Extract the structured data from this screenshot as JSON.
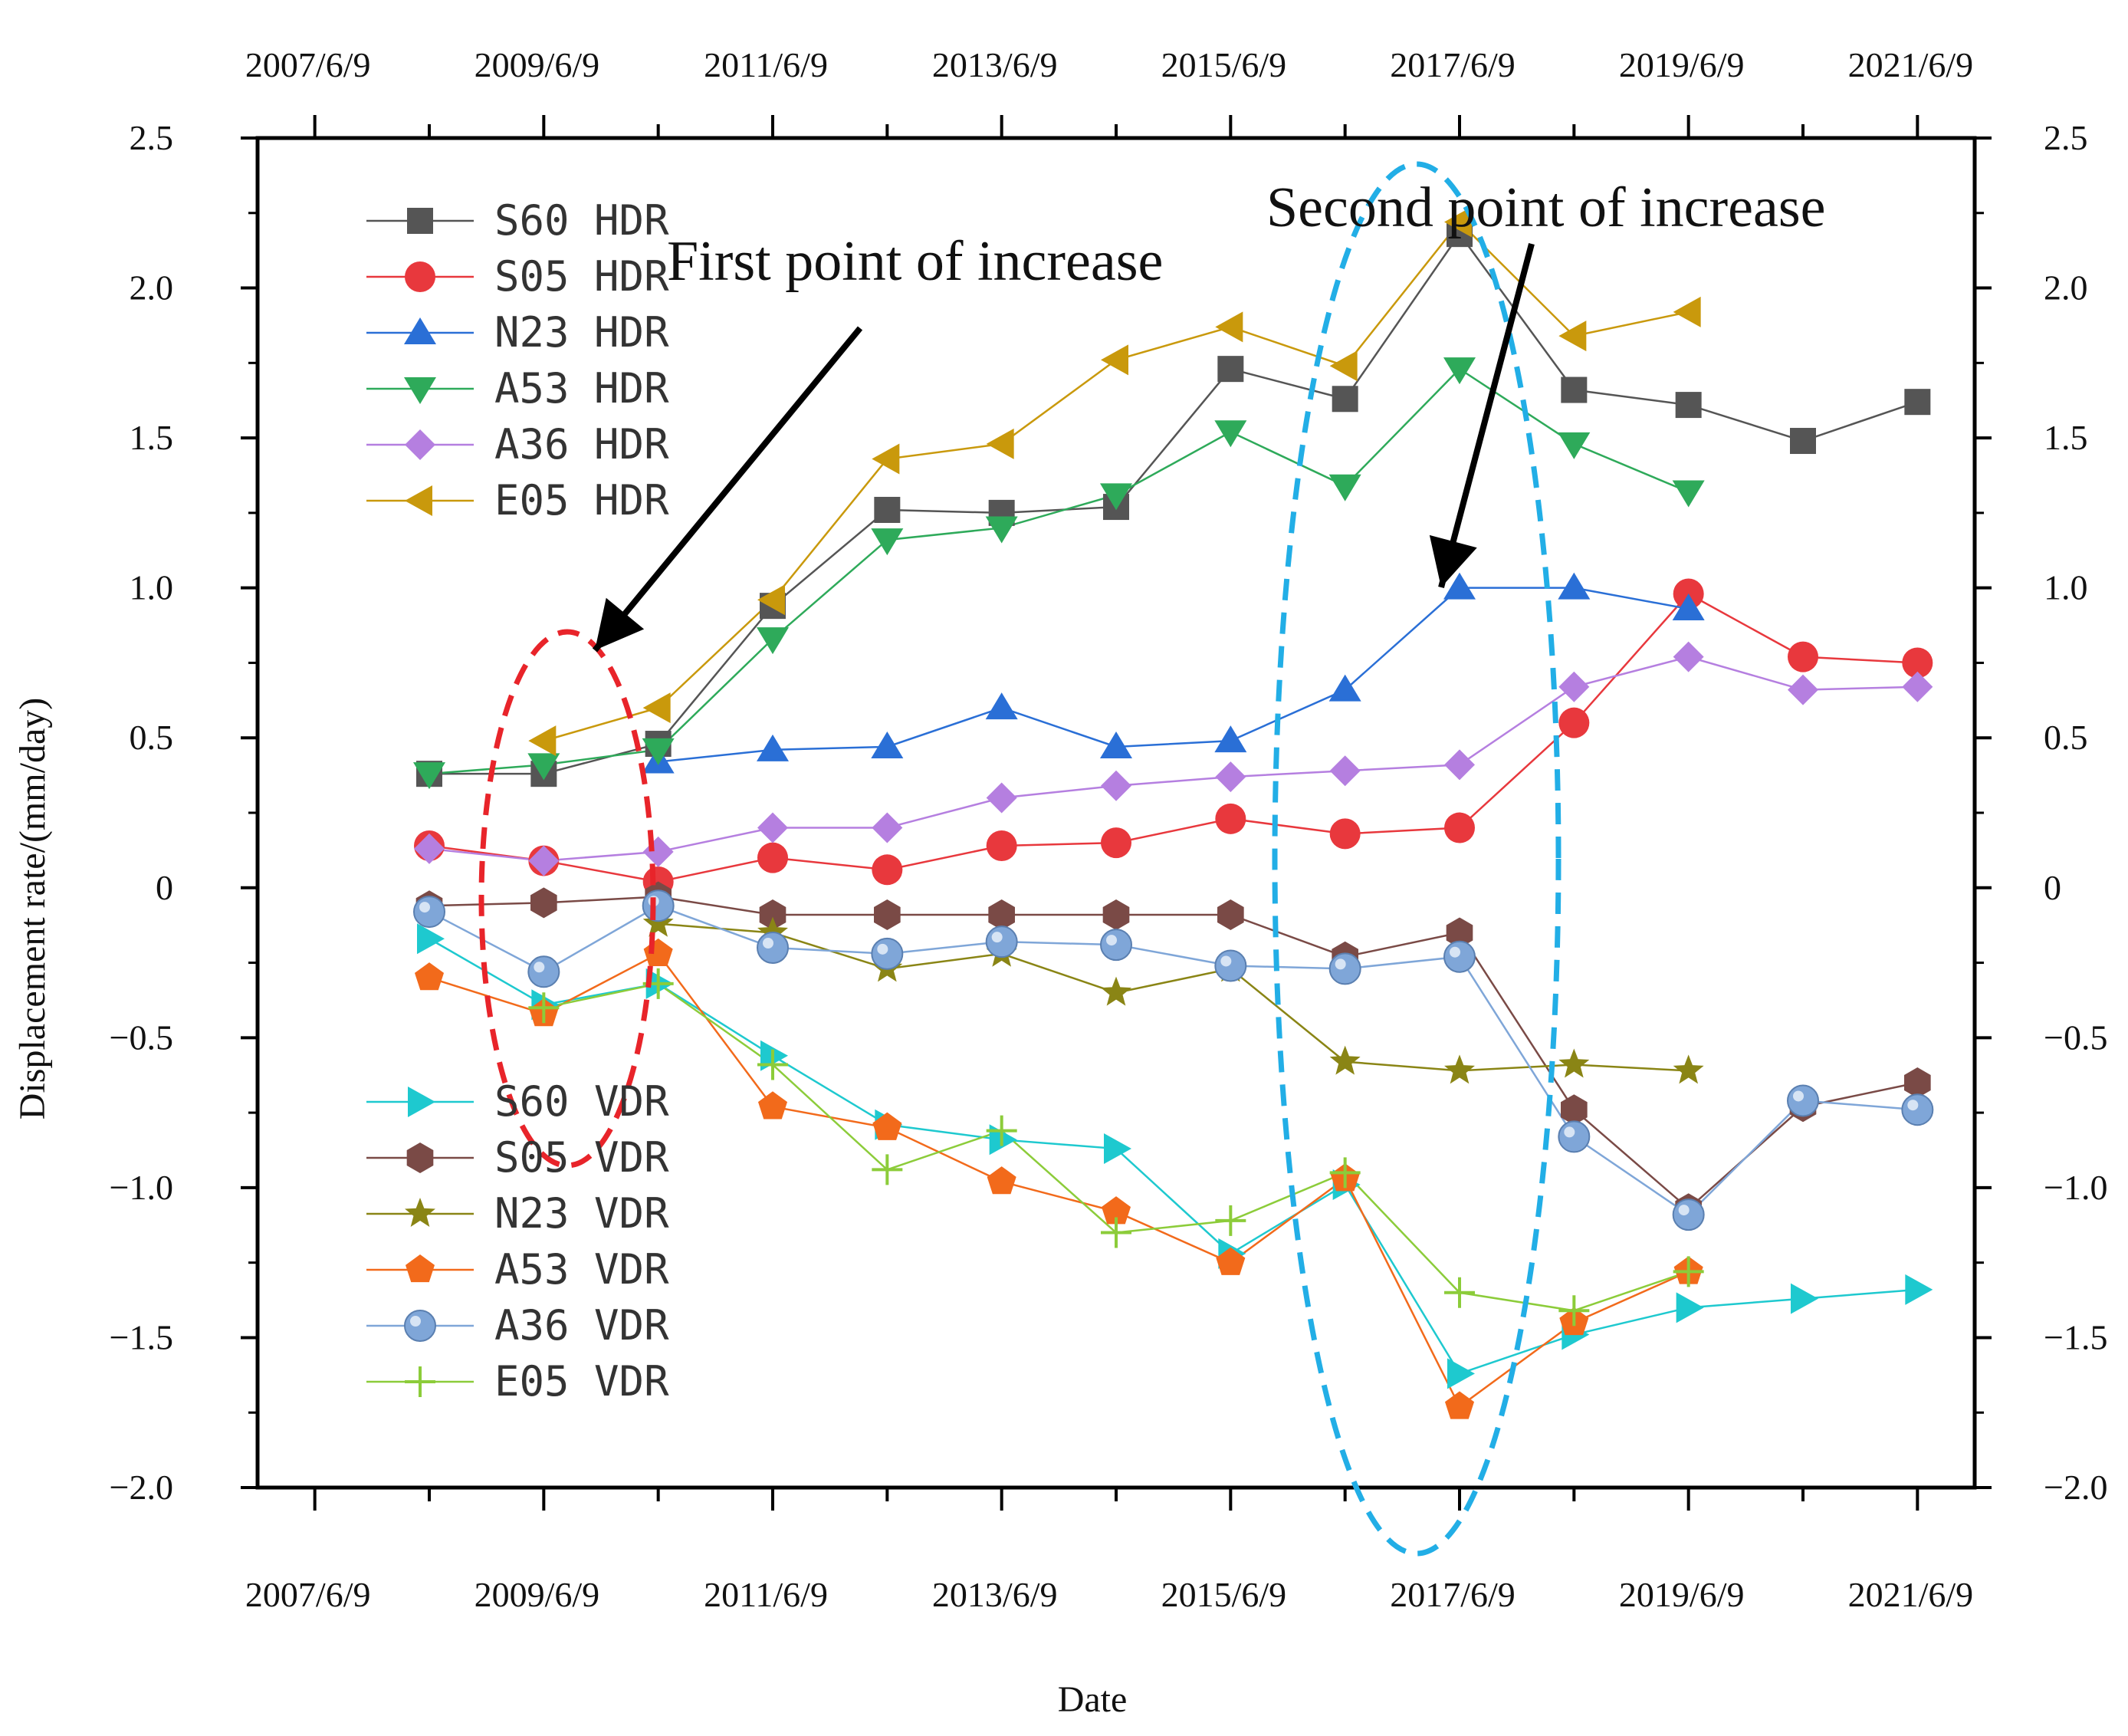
{
  "chart_data": {
    "type": "line",
    "title": "",
    "xlabel": "Date",
    "ylabel": "Displacement rate/(mm/day)",
    "ylim": [
      -2.0,
      2.5
    ],
    "xlim": [
      2007.0,
      2022.0
    ],
    "x_tick_labels": [
      "2007/6/9",
      "2009/6/9",
      "2011/6/9",
      "2013/6/9",
      "2015/6/9",
      "2017/6/9",
      "2019/6/9",
      "2021/6/9"
    ],
    "x_tick_values": [
      2007.44,
      2009.44,
      2011.44,
      2013.44,
      2015.44,
      2017.44,
      2019.44,
      2021.44
    ],
    "y_ticks": [
      {
        "value": 2.5,
        "label": "2.5"
      },
      {
        "value": 2.0,
        "label": "2.0"
      },
      {
        "value": 1.5,
        "label": "1.5"
      },
      {
        "value": 1.0,
        "label": "1.0"
      },
      {
        "value": 0.5,
        "label": "0.5"
      },
      {
        "value": 0,
        "label": "0"
      },
      {
        "value": -0.5,
        "label": "−0.5"
      },
      {
        "value": -1.0,
        "label": "−1.0"
      },
      {
        "value": -1.5,
        "label": "−1.5"
      },
      {
        "value": -2.0,
        "label": "−2.0"
      }
    ],
    "grid": false,
    "legend_placement": "upper-left (HDR) and lower-left (VDR)",
    "series": [
      {
        "name": "S60  HDR",
        "group": "HDR",
        "color": "#555555",
        "marker": "square",
        "x": [
          2008.5,
          2009.5,
          2010.5,
          2011.5,
          2012.5,
          2013.5,
          2014.5,
          2015.5,
          2016.5,
          2017.5,
          2018.5,
          2019.5,
          2020.5,
          2021.5
        ],
        "values": [
          0.38,
          0.38,
          0.48,
          0.94,
          1.26,
          1.25,
          1.27,
          1.73,
          1.63,
          2.18,
          1.66,
          1.61,
          1.49,
          1.62
        ]
      },
      {
        "name": "S05  HDR",
        "group": "HDR",
        "color": "#e8383d",
        "marker": "circle",
        "x": [
          2008.5,
          2009.5,
          2010.5,
          2011.5,
          2012.5,
          2013.5,
          2014.5,
          2015.5,
          2016.5,
          2017.5,
          2018.5,
          2019.5,
          2020.5,
          2021.5
        ],
        "values": [
          0.14,
          0.09,
          0.02,
          0.1,
          0.06,
          0.14,
          0.15,
          0.23,
          0.18,
          0.2,
          0.55,
          0.98,
          0.77,
          0.75
        ]
      },
      {
        "name": "N23  HDR",
        "group": "HDR",
        "color": "#2a6fd6",
        "marker": "triangle-up",
        "x": [
          2010.5,
          2011.5,
          2012.5,
          2013.5,
          2014.5,
          2015.5,
          2016.5,
          2017.5,
          2018.5,
          2019.5
        ],
        "values": [
          0.42,
          0.46,
          0.47,
          0.6,
          0.47,
          0.49,
          0.66,
          1.0,
          1.0,
          0.93
        ]
      },
      {
        "name": "A53  HDR",
        "group": "HDR",
        "color": "#2eaa5a",
        "marker": "triangle-down",
        "x": [
          2008.5,
          2009.5,
          2010.5,
          2011.5,
          2012.5,
          2013.5,
          2014.5,
          2015.5,
          2016.5,
          2017.5,
          2018.5,
          2019.5
        ],
        "values": [
          0.38,
          0.41,
          0.46,
          0.83,
          1.16,
          1.2,
          1.31,
          1.52,
          1.34,
          1.73,
          1.48,
          1.32
        ]
      },
      {
        "name": "A36  HDR",
        "group": "HDR",
        "color": "#b57fe0",
        "marker": "diamond",
        "x": [
          2008.5,
          2009.5,
          2010.5,
          2011.5,
          2012.5,
          2013.5,
          2014.5,
          2015.5,
          2016.5,
          2017.5,
          2018.5,
          2019.5,
          2020.5,
          2021.5
        ],
        "values": [
          0.13,
          0.09,
          0.12,
          0.2,
          0.2,
          0.3,
          0.34,
          0.37,
          0.39,
          0.41,
          0.67,
          0.77,
          0.66,
          0.67
        ]
      },
      {
        "name": "E05  HDR",
        "group": "HDR",
        "color": "#c9990c",
        "marker": "triangle-left",
        "x": [
          2009.5,
          2010.5,
          2011.5,
          2012.5,
          2013.5,
          2014.5,
          2015.5,
          2016.5,
          2017.5,
          2018.5,
          2019.5
        ],
        "values": [
          0.49,
          0.6,
          0.96,
          1.43,
          1.48,
          1.76,
          1.87,
          1.74,
          2.22,
          1.84,
          1.92
        ]
      },
      {
        "name": "S60  VDR",
        "group": "VDR",
        "color": "#1ec9cf",
        "marker": "triangle-right",
        "x": [
          2008.5,
          2009.5,
          2010.5,
          2011.5,
          2012.5,
          2013.5,
          2014.5,
          2015.5,
          2016.5,
          2017.5,
          2018.5,
          2019.5,
          2020.5,
          2021.5
        ],
        "values": [
          -0.17,
          -0.39,
          -0.32,
          -0.56,
          -0.79,
          -0.84,
          -0.87,
          -1.22,
          -0.99,
          -1.62,
          -1.49,
          -1.4,
          -1.37,
          -1.34
        ]
      },
      {
        "name": "S05  VDR",
        "group": "VDR",
        "color": "#7a4a46",
        "marker": "hexagon",
        "x": [
          2008.5,
          2009.5,
          2010.5,
          2011.5,
          2012.5,
          2013.5,
          2014.5,
          2015.5,
          2016.5,
          2017.5,
          2018.5,
          2019.5,
          2020.5,
          2021.5
        ],
        "values": [
          -0.06,
          -0.05,
          -0.03,
          -0.09,
          -0.09,
          -0.09,
          -0.09,
          -0.09,
          -0.23,
          -0.15,
          -0.74,
          -1.07,
          -0.73,
          -0.65
        ]
      },
      {
        "name": "N23  VDR",
        "group": "VDR",
        "color": "#8a8515",
        "marker": "star",
        "x": [
          2010.5,
          2011.5,
          2012.5,
          2013.5,
          2014.5,
          2015.5,
          2016.5,
          2017.5,
          2018.5,
          2019.5
        ],
        "values": [
          -0.12,
          -0.15,
          -0.27,
          -0.22,
          -0.35,
          -0.27,
          -0.58,
          -0.61,
          -0.59,
          -0.61
        ]
      },
      {
        "name": "A53  VDR",
        "group": "VDR",
        "color": "#f26a1b",
        "marker": "pentagon",
        "x": [
          2008.5,
          2009.5,
          2010.5,
          2011.5,
          2012.5,
          2013.5,
          2014.5,
          2015.5,
          2016.5,
          2017.5,
          2018.5,
          2019.5
        ],
        "values": [
          -0.3,
          -0.42,
          -0.22,
          -0.73,
          -0.8,
          -0.98,
          -1.08,
          -1.25,
          -0.97,
          -1.73,
          -1.45,
          -1.28
        ]
      },
      {
        "name": "A36  VDR",
        "group": "VDR",
        "color": "#7fa6d8",
        "marker": "sphere",
        "x": [
          2008.5,
          2009.5,
          2010.5,
          2011.5,
          2012.5,
          2013.5,
          2014.5,
          2015.5,
          2016.5,
          2017.5,
          2018.5,
          2019.5,
          2020.5,
          2021.5
        ],
        "values": [
          -0.08,
          -0.28,
          -0.06,
          -0.2,
          -0.22,
          -0.18,
          -0.19,
          -0.26,
          -0.27,
          -0.23,
          -0.83,
          -1.09,
          -0.71,
          -0.74
        ]
      },
      {
        "name": "E05  VDR",
        "group": "VDR",
        "color": "#8ccc3a",
        "marker": "plus",
        "x": [
          2009.5,
          2010.5,
          2011.5,
          2012.5,
          2013.5,
          2014.5,
          2015.5,
          2016.5,
          2017.5,
          2018.5,
          2019.5
        ],
        "values": [
          -0.4,
          -0.32,
          -0.59,
          -0.94,
          -0.81,
          -1.15,
          -1.11,
          -0.95,
          -1.35,
          -1.41,
          -1.28
        ]
      }
    ],
    "annotations": [
      {
        "text": "First point of increase",
        "target_x": 2010.0,
        "target_y": 0.16
      },
      {
        "text": "Second point of increase",
        "target_x": 2017.5,
        "target_y": 0.11
      }
    ]
  }
}
